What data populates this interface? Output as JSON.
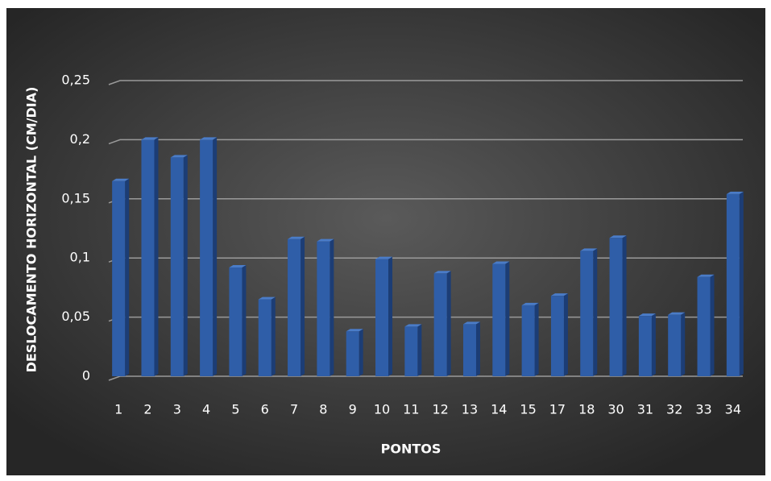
{
  "chart_data": {
    "type": "bar",
    "xlabel": "PONTOS",
    "ylabel": "DESLOCAMENTO HORIZONTAL (CM/DIA)",
    "categories": [
      "1",
      "2",
      "3",
      "4",
      "5",
      "6",
      "7",
      "8",
      "9",
      "10",
      "11",
      "12",
      "13",
      "14",
      "15",
      "17",
      "18",
      "30",
      "31",
      "32",
      "33",
      "34"
    ],
    "values": [
      0.165,
      0.2,
      0.185,
      0.2,
      0.092,
      0.065,
      0.116,
      0.114,
      0.038,
      0.099,
      0.042,
      0.087,
      0.044,
      0.095,
      0.06,
      0.068,
      0.106,
      0.117,
      0.051,
      0.052,
      0.084,
      0.154
    ],
    "color": "#2f5ea8",
    "ylim": [
      0,
      0.25
    ],
    "yticks": [
      0,
      {
        "value": 0.05,
        "label": "0,05"
      },
      {
        "value": 0.1,
        "label": "0,1"
      },
      {
        "value": 0.15,
        "label": "0,15"
      },
      {
        "value": 0.2,
        "label": "0,2"
      },
      {
        "value": 0.25,
        "label": "0,25"
      }
    ],
    "grid": true
  }
}
